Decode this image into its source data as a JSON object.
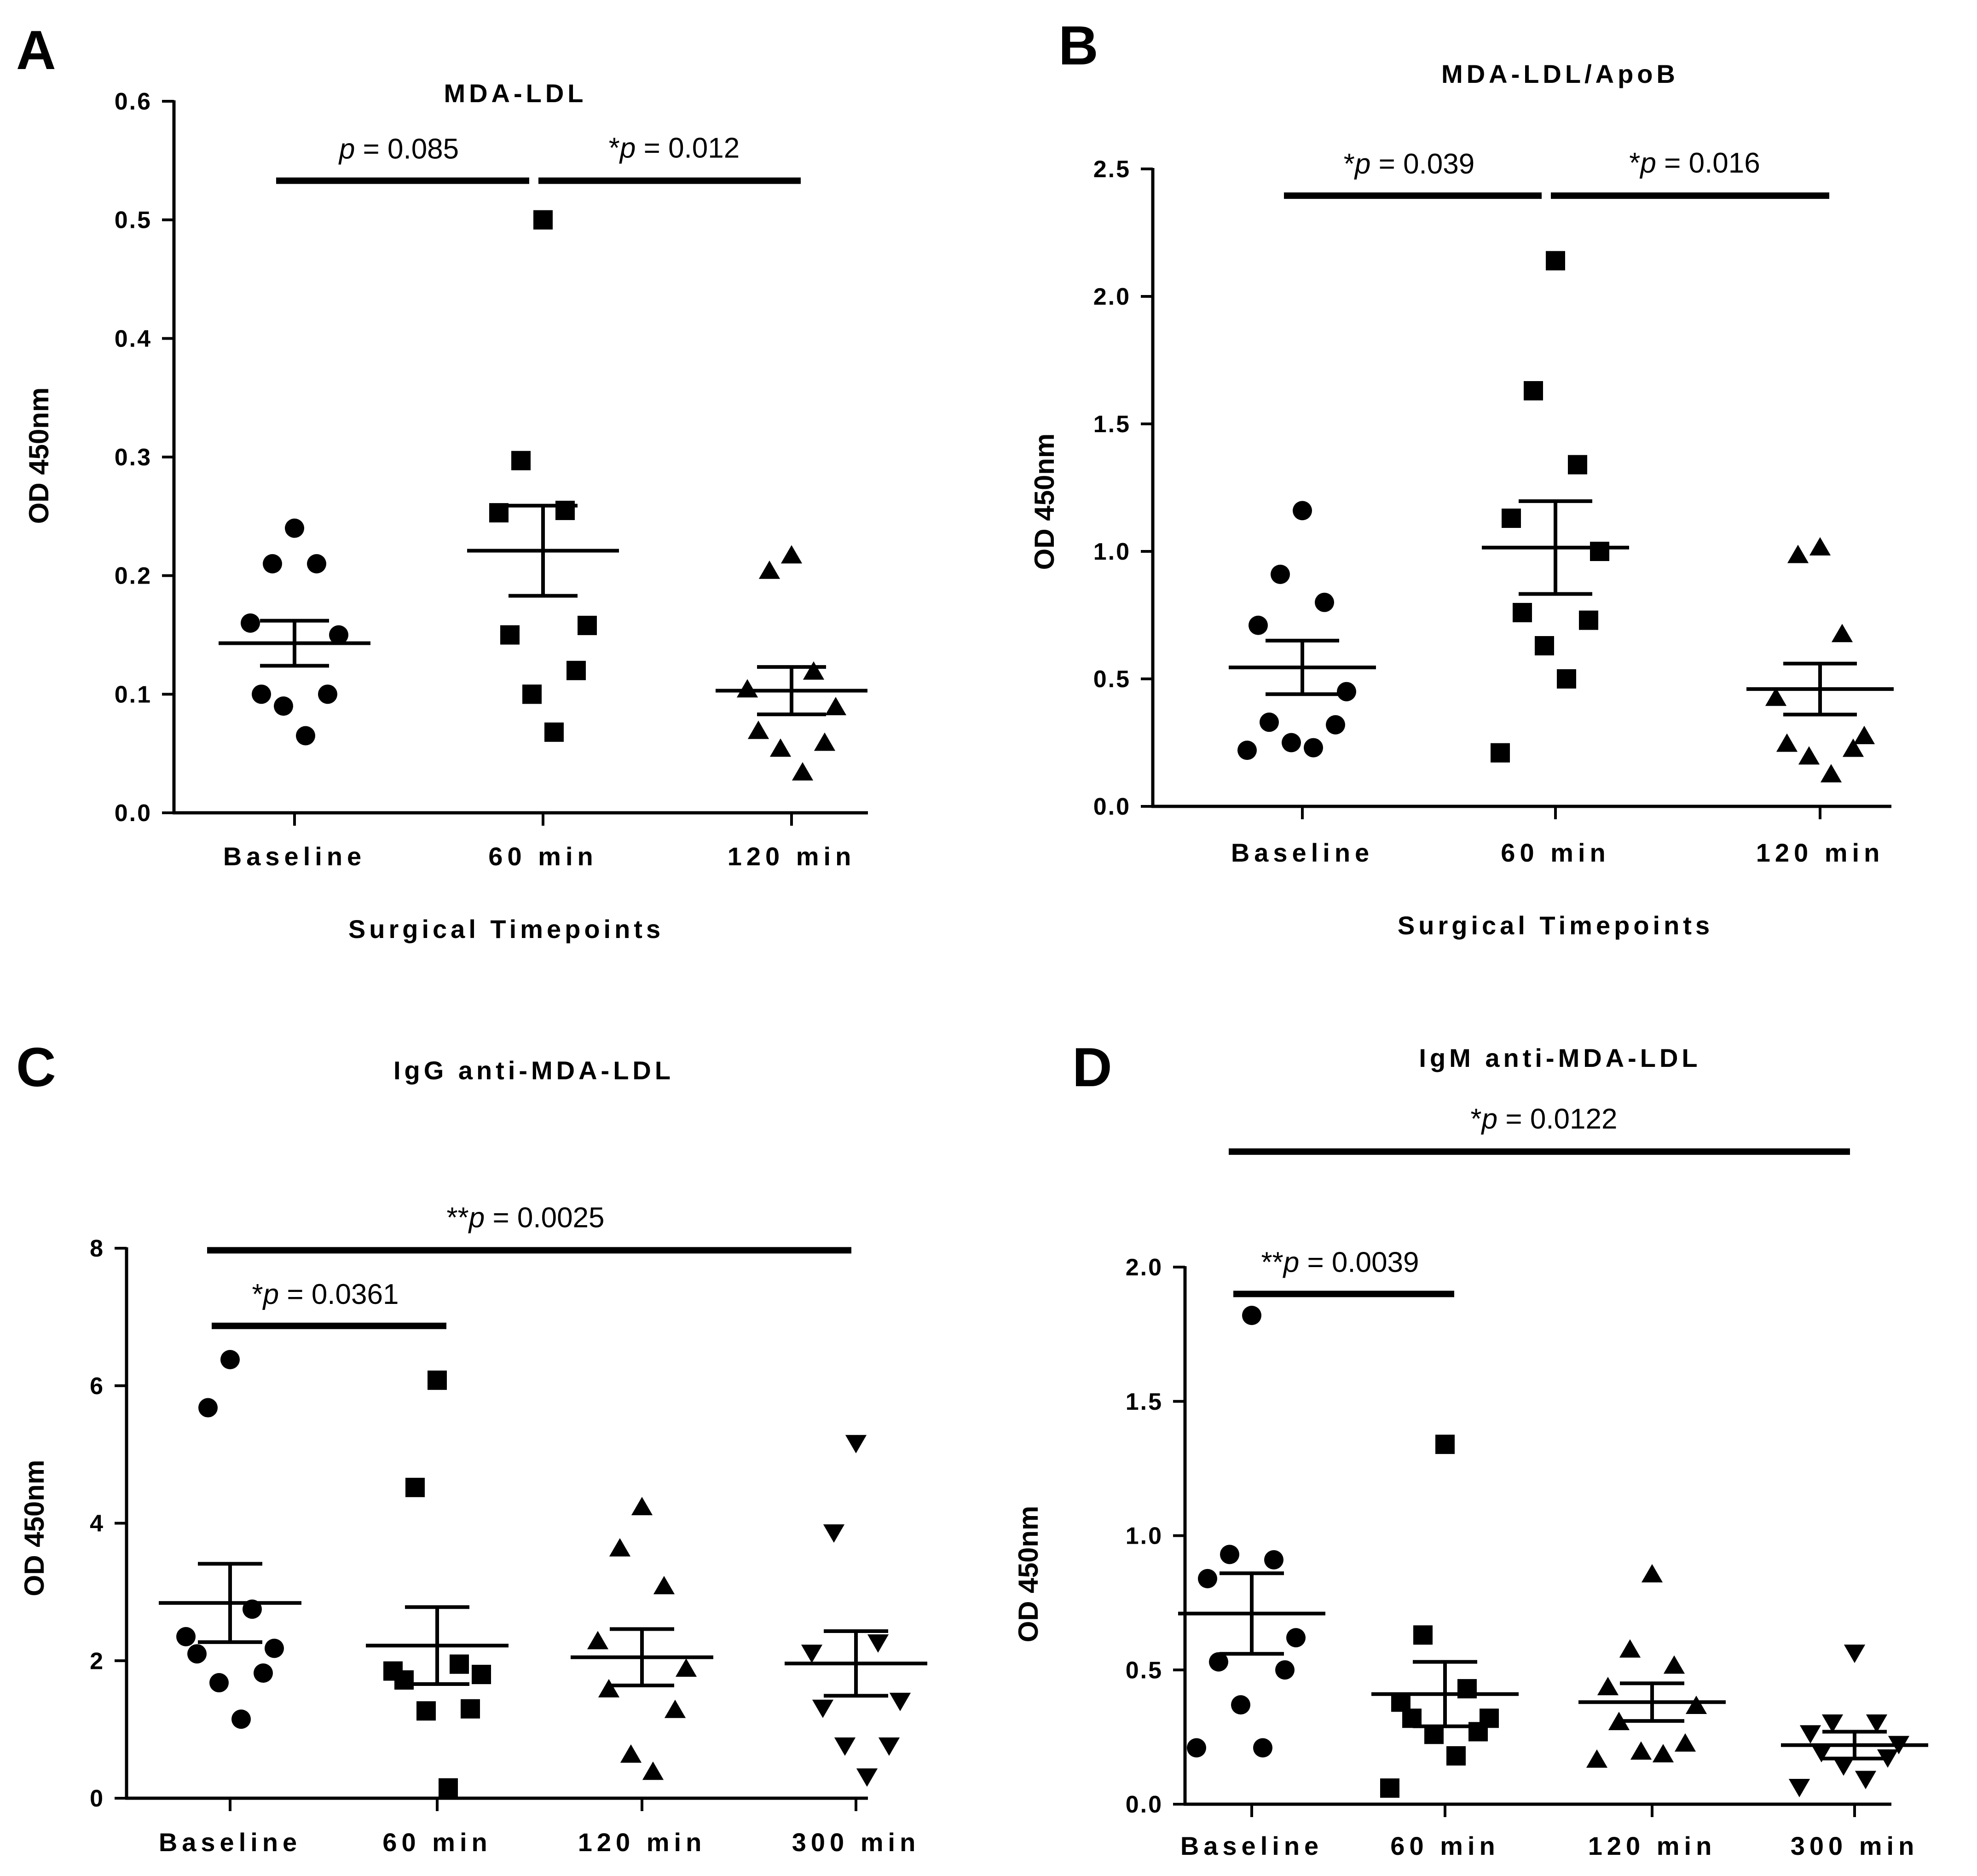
{
  "chart_data": [
    {
      "panel": "A",
      "type": "scatter",
      "title": "MDA-LDL",
      "ylabel": "OD 450nm",
      "xlabel": "Surgical Timepoints",
      "ylim": [
        0,
        0.6
      ],
      "yticks": [
        0,
        0.1,
        0.2,
        0.3,
        0.4,
        0.5,
        0.6
      ],
      "ytick_labels": [
        "0.0",
        "0.1",
        "0.2",
        "0.3",
        "0.4",
        "0.5",
        "0.6"
      ],
      "categories": [
        "Baseline",
        "60 min",
        "120 min"
      ],
      "series": [
        {
          "name": "Baseline",
          "marker": "circle",
          "values": [
            0.24,
            0.21,
            0.21,
            0.16,
            0.15,
            0.1,
            0.1,
            0.09,
            0.065
          ],
          "mean": 0.143,
          "sem": 0.019
        },
        {
          "name": "60 min",
          "marker": "square",
          "values": [
            0.5,
            0.297,
            0.255,
            0.253,
            0.158,
            0.15,
            0.12,
            0.1,
            0.068
          ],
          "mean": 0.221,
          "sem": 0.038
        },
        {
          "name": "120 min",
          "marker": "triangle-up",
          "values": [
            0.218,
            0.205,
            0.12,
            0.105,
            0.09,
            0.07,
            0.06,
            0.055,
            0.035
          ],
          "mean": 0.103,
          "sem": 0.02
        }
      ],
      "annotations": [
        {
          "prefix": "",
          "value": " = 0.085",
          "from": 0,
          "to": 1,
          "y": 0.533
        },
        {
          "prefix": "*",
          "value": " = 0.012",
          "from": 1,
          "to": 2,
          "y": 0.533
        }
      ]
    },
    {
      "panel": "B",
      "type": "scatter",
      "title": "MDA-LDL/ApoB",
      "ylabel": "OD 450nm",
      "xlabel": "Surgical Timepoints",
      "ylim": [
        0,
        2.5
      ],
      "yticks": [
        0,
        0.5,
        1.0,
        1.5,
        2.0,
        2.5
      ],
      "ytick_labels": [
        "0.0",
        "0.5",
        "1.0",
        "1.5",
        "2.0",
        "2.5"
      ],
      "categories": [
        "Baseline",
        "60 min",
        "120 min"
      ],
      "series": [
        {
          "name": "Baseline",
          "marker": "circle",
          "values": [
            1.16,
            0.91,
            0.8,
            0.71,
            0.45,
            0.33,
            0.32,
            0.25,
            0.23,
            0.22
          ],
          "mean": 0.545,
          "sem": 0.105
        },
        {
          "name": "60 min",
          "marker": "square",
          "values": [
            2.14,
            1.63,
            1.34,
            1.13,
            1.0,
            0.76,
            0.73,
            0.63,
            0.5,
            0.21
          ],
          "mean": 1.015,
          "sem": 0.182
        },
        {
          "name": "120 min",
          "marker": "triangle-up",
          "values": [
            1.02,
            0.99,
            0.68,
            0.43,
            0.28,
            0.25,
            0.23,
            0.2,
            0.13
          ],
          "mean": 0.46,
          "sem": 0.1
        }
      ],
      "annotations": [
        {
          "prefix": "*",
          "value": " = 0.039",
          "from": 0,
          "to": 1,
          "y": 2.395
        },
        {
          "prefix": "*",
          "value": " = 0.016",
          "from": 1,
          "to": 2,
          "y": 2.395
        }
      ]
    },
    {
      "panel": "C",
      "type": "scatter",
      "title": "IgG anti-MDA-LDL",
      "ylabel": "OD 450nm",
      "xlabel": "",
      "ylim": [
        0,
        8
      ],
      "yticks": [
        0,
        2,
        4,
        6,
        8
      ],
      "ytick_labels": [
        "0",
        "2",
        "4",
        "6",
        "8"
      ],
      "categories": [
        "Baseline",
        "60 min",
        "120 min",
        "300 min"
      ],
      "series": [
        {
          "name": "Baseline",
          "marker": "circle",
          "values": [
            6.38,
            5.68,
            2.75,
            2.35,
            2.18,
            2.1,
            1.82,
            1.68,
            1.15
          ],
          "mean": 2.84,
          "sem": 0.57
        },
        {
          "name": "60 min",
          "marker": "square",
          "values": [
            6.08,
            4.52,
            1.95,
            1.85,
            1.8,
            1.72,
            1.3,
            1.27,
            0.15
          ],
          "mean": 2.22,
          "sem": 0.56
        },
        {
          "name": "120 min",
          "marker": "triangle-up",
          "values": [
            4.25,
            3.65,
            3.1,
            2.3,
            1.9,
            1.6,
            1.3,
            0.65,
            0.4
          ],
          "mean": 2.05,
          "sem": 0.41
        },
        {
          "name": "300 min",
          "marker": "triangle-down",
          "values": [
            5.15,
            3.85,
            2.25,
            2.1,
            1.4,
            1.3,
            0.75,
            0.75,
            0.3
          ],
          "mean": 1.96,
          "sem": 0.47
        }
      ],
      "annotations": [
        {
          "prefix": "*",
          "value": " = 0.0361",
          "from": 0,
          "to": 1,
          "y": 6.87
        },
        {
          "prefix": "**",
          "value": " = 0.0025",
          "from": 0,
          "to": 3,
          "y": 7.97
        }
      ]
    },
    {
      "panel": "D",
      "type": "scatter",
      "title": "IgM anti-MDA-LDL",
      "ylabel": "OD 450nm",
      "xlabel": "",
      "ylim": [
        0,
        2.0
      ],
      "yticks": [
        0,
        0.5,
        1.0,
        1.5,
        2.0
      ],
      "ytick_labels": [
        "0.0",
        "0.5",
        "1.0",
        "1.5",
        "2.0"
      ],
      "categories": [
        "Baseline",
        "60 min",
        "120 min",
        "300 min"
      ],
      "series": [
        {
          "name": "Baseline",
          "marker": "circle",
          "values": [
            1.82,
            0.93,
            0.91,
            0.84,
            0.62,
            0.53,
            0.5,
            0.37,
            0.21,
            0.21
          ],
          "mean": 0.71,
          "sem": 0.15
        },
        {
          "name": "60 min",
          "marker": "square",
          "values": [
            1.34,
            0.63,
            0.43,
            0.38,
            0.32,
            0.32,
            0.27,
            0.26,
            0.18,
            0.06
          ],
          "mean": 0.41,
          "sem": 0.12
        },
        {
          "name": "120 min",
          "marker": "triangle-up",
          "values": [
            0.86,
            0.58,
            0.52,
            0.44,
            0.37,
            0.31,
            0.23,
            0.2,
            0.19,
            0.17
          ],
          "mean": 0.38,
          "sem": 0.07
        },
        {
          "name": "300 min",
          "marker": "triangle-down",
          "values": [
            0.56,
            0.3,
            0.3,
            0.26,
            0.22,
            0.19,
            0.17,
            0.14,
            0.09,
            0.06
          ],
          "mean": 0.22,
          "sem": 0.05
        }
      ],
      "annotations": [
        {
          "prefix": "**",
          "value": " = 0.0039",
          "from": 0,
          "to": 1,
          "y": 1.9
        },
        {
          "prefix": "*",
          "value": " = 0.0122",
          "from": 0,
          "to": 3,
          "y": 2.43
        }
      ]
    }
  ]
}
